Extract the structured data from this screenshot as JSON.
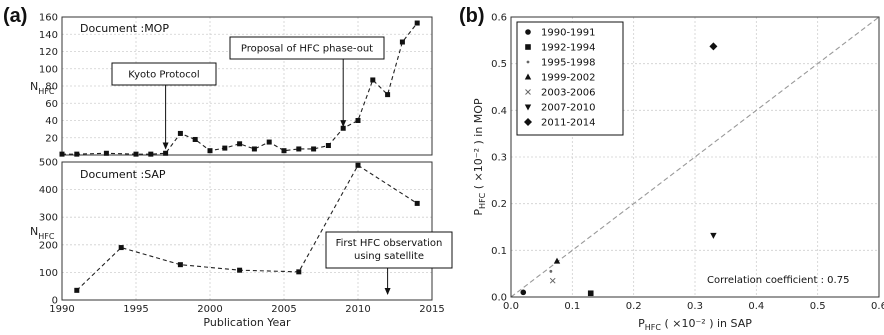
{
  "panel_a_label": "(a)",
  "panel_b_label": "(b)",
  "chart_data": [
    {
      "type": "line",
      "panel": "a-top",
      "document_label": "Document :MOP",
      "ylabel_main": "N",
      "ylabel_sub": "HFC",
      "xlim": [
        1990,
        2015
      ],
      "ylim": [
        0,
        160
      ],
      "yticks": [
        0,
        20,
        40,
        60,
        80,
        100,
        120,
        140,
        160
      ],
      "x": [
        1990,
        1991,
        1993,
        1995,
        1996,
        1997,
        1998,
        1999,
        2000,
        2001,
        2002,
        2003,
        2004,
        2005,
        2006,
        2007,
        2008,
        2009,
        2010,
        2011,
        2012,
        2013,
        2014
      ],
      "y": [
        1,
        1,
        2,
        1,
        1,
        2,
        25,
        18,
        5,
        8,
        13,
        7,
        15,
        5,
        7,
        7,
        11,
        31,
        40,
        87,
        70,
        131,
        153
      ],
      "annotations": [
        {
          "text": "Kyoto Protocol",
          "x": 1997,
          "y": 4
        },
        {
          "text": "Proposal of HFC phase-out",
          "x": 2009,
          "y": 30
        }
      ]
    },
    {
      "type": "line",
      "panel": "a-bottom",
      "document_label": "Document :SAP",
      "xlabel": "Publication Year",
      "ylabel_main": "N",
      "ylabel_sub": "HFC",
      "xlim": [
        1990,
        2015
      ],
      "ylim": [
        0,
        500
      ],
      "xticks": [
        1990,
        1995,
        2000,
        2005,
        2010,
        2015
      ],
      "yticks": [
        0,
        100,
        200,
        300,
        400,
        500
      ],
      "x": [
        1991,
        1994,
        1998,
        2002,
        2006,
        2010,
        2014
      ],
      "y": [
        35,
        190,
        128,
        108,
        102,
        488,
        350
      ],
      "annotations": [
        {
          "text_lines": [
            "First HFC observation",
            "using satellite"
          ],
          "x": 2012,
          "y": 0
        }
      ]
    },
    {
      "type": "scatter",
      "panel": "b",
      "xlabel_prefix": "P",
      "xlabel_sub": "HFC",
      "xlabel_rest": " ( ×10⁻² ) in SAP",
      "ylabel_prefix": "P",
      "ylabel_sub": "HFC",
      "ylabel_rest": " ( ×10⁻² ) in MOP",
      "xlim": [
        0,
        0.6
      ],
      "ylim": [
        0,
        0.6
      ],
      "xticks": [
        "0.0",
        "0.1",
        "0.2",
        "0.3",
        "0.4",
        "0.5",
        "0.6"
      ],
      "yticks": [
        "0.0",
        "0.1",
        "0.2",
        "0.3",
        "0.4",
        "0.5",
        "0.6"
      ],
      "correlation_text": "Correlation coefficient : 0.75",
      "reference_line": "y = x",
      "series": [
        {
          "name": "1990-1991",
          "marker": "circle",
          "points": [
            [
              0.02,
              0.01
            ]
          ]
        },
        {
          "name": "1992-1994",
          "marker": "square",
          "points": [
            [
              0.13,
              0.008
            ]
          ]
        },
        {
          "name": "1995-1998",
          "marker": "small-dot",
          "points": [
            [
              0.065,
              0.055
            ]
          ]
        },
        {
          "name": "1999-2002",
          "marker": "triangle-up",
          "points": [
            [
              0.075,
              0.077
            ]
          ]
        },
        {
          "name": "2003-2006",
          "marker": "x",
          "points": [
            [
              0.068,
              0.035
            ]
          ]
        },
        {
          "name": "2007-2010",
          "marker": "triangle-down",
          "points": [
            [
              0.33,
              0.132
            ]
          ]
        },
        {
          "name": "2011-2014",
          "marker": "diamond",
          "points": [
            [
              0.33,
              0.537
            ]
          ]
        }
      ],
      "legend_position": "top-left"
    }
  ]
}
